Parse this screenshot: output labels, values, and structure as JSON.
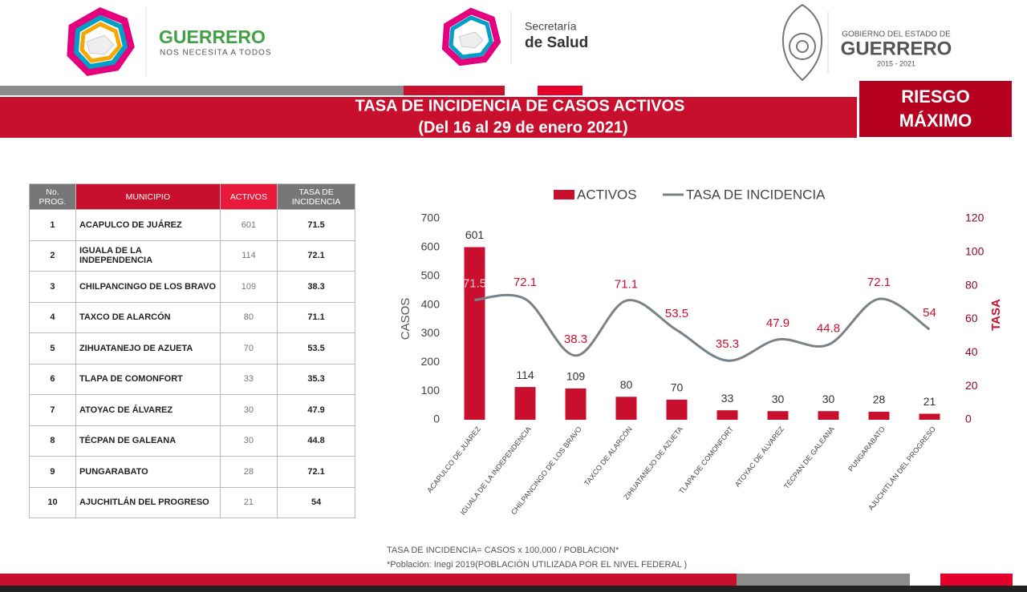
{
  "header": {
    "brand": "GUERRERO",
    "slogan": "NOS NECESITA A TODOS",
    "secretaria_line1": "Secretaría",
    "secretaria_line2": "de Salud",
    "gob_line1": "GOBIERNO DEL ESTADO DE",
    "gob_line2": "GUERRERO",
    "gob_years": "2015 - 2021",
    "title": "TASA DE INCIDENCIA DE CASOS ACTIVOS",
    "subtitle": "(Del 16 al 29 de enero 2021)",
    "risk_line1": "RIESGO",
    "risk_line2": "MÁXIMO"
  },
  "table": {
    "columns": [
      "No. PROG.",
      "MUNICIPIO",
      "ACTIVOS",
      "TASA DE INCIDENCIA"
    ],
    "rows": [
      [
        1,
        "ACAPULCO DE JUÁREZ",
        601,
        71.5
      ],
      [
        2,
        "IGUALA DE LA INDEPENDENCIA",
        114,
        72.1
      ],
      [
        3,
        "CHILPANCINGO DE LOS BRAVO",
        109,
        38.3
      ],
      [
        4,
        "TAXCO DE ALARCÓN",
        80,
        71.1
      ],
      [
        5,
        "ZIHUATANEJO DE AZUETA",
        70,
        53.5
      ],
      [
        6,
        "TLAPA DE COMONFORT",
        33,
        35.3
      ],
      [
        7,
        "ATOYAC DE ÁLVAREZ",
        30,
        47.9
      ],
      [
        8,
        "TÉCPAN DE GALEANA",
        30,
        44.8
      ],
      [
        9,
        "PUNGARABATO",
        28,
        72.1
      ],
      [
        10,
        "AJUCHITLÁN DEL PROGRESO",
        21,
        54
      ]
    ]
  },
  "chart_data": {
    "type": "bar_line",
    "categories": [
      "ACAPULCO DE JUÁREZ",
      "IGUALA DE LA INDEPENDENCIA",
      "CHILPANCINGO DE LOS BRAVO",
      "TAXCO DE ALARCÓN",
      "ZIHUATANEJO DE AZUETA",
      "TLAPA DE COMONFORT",
      "ATOYAC DE ÁLVAREZ",
      "TÉCPAN DE GALEANA",
      "PUNGARABATO",
      "AJUCHITLÁN DEL PROGRESO"
    ],
    "series": [
      {
        "name": "ACTIVOS",
        "color": "#c8102e",
        "values": [
          601,
          114,
          109,
          80,
          70,
          33,
          30,
          30,
          28,
          21
        ]
      },
      {
        "name": "TASA DE INCIDENCIA",
        "color": "#7a8288",
        "axis": "y2",
        "values": [
          71.5,
          72.1,
          38.3,
          71.1,
          53.5,
          35.3,
          47.9,
          44.8,
          72.1,
          54
        ]
      }
    ],
    "ylabel": "CASOS",
    "y2label": "TASA",
    "ylim": [
      0,
      700
    ],
    "yticks": [
      0,
      100,
      200,
      300,
      400,
      500,
      600,
      700
    ],
    "y2lim": [
      0,
      120
    ],
    "y2ticks": [
      0,
      20,
      40,
      60,
      80,
      100,
      120
    ],
    "legend": "top"
  },
  "footnotes": [
    "TASA DE INCIDENCIA= CASOS x 100,000 / POBLACION*",
    "*Población: Inegi 2019(POBLACIÓN UTILIZADA POR EL NIVEL FEDERAL )"
  ]
}
